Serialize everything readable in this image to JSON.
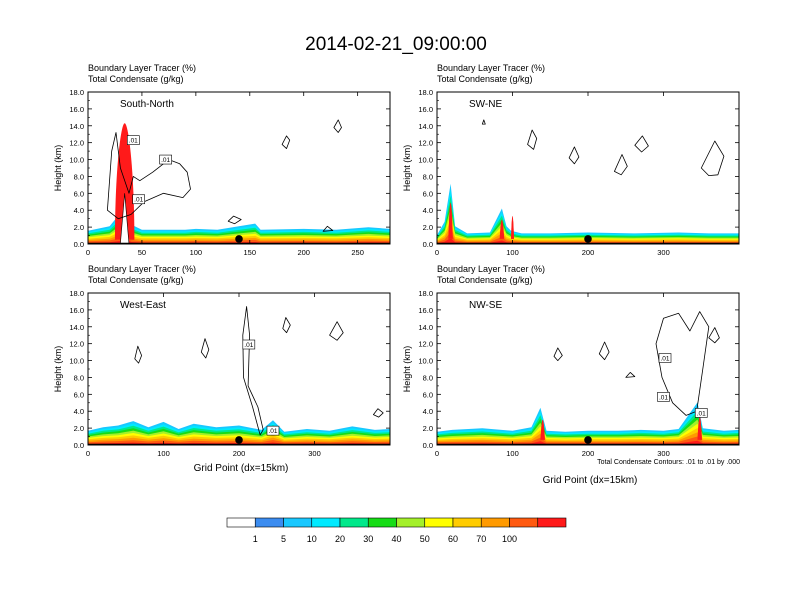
{
  "title": "2014-02-21_09:00:00",
  "chart_data": [
    {
      "type": "heatmap",
      "panel_label": "South-North",
      "line1": "Boundary Layer Tracer   (%)",
      "line2": "Total Condensate   (g/kg)",
      "ylabel": "Height (km)",
      "xlabel": "",
      "xlim": [
        0,
        280
      ],
      "ylim": [
        0,
        18
      ],
      "xticks": [
        0,
        50,
        100,
        150,
        200,
        250
      ],
      "yticks": [
        0.0,
        2.0,
        4.0,
        6.0,
        8.0,
        10.0,
        12.0,
        14.0,
        16.0,
        18.0
      ],
      "marker_x": 140,
      "contour_labels": [
        {
          "text": ".01",
          "x": 42,
          "y": 12.3
        },
        {
          "text": ".01",
          "x": 72,
          "y": 10.0
        },
        {
          "text": ".01",
          "x": 47,
          "y": 5.3
        }
      ]
    },
    {
      "type": "heatmap",
      "panel_label": "SW-NE",
      "line1": "Boundary Layer Tracer   (%)",
      "line2": "Total Condensate   (g/kg)",
      "ylabel": "Height (km)",
      "xlabel": "",
      "xlim": [
        0,
        400
      ],
      "ylim": [
        0,
        18
      ],
      "xticks": [
        0,
        100,
        200,
        300
      ],
      "yticks": [
        0.0,
        2.0,
        4.0,
        6.0,
        8.0,
        10.0,
        12.0,
        14.0,
        16.0,
        18.0
      ],
      "marker_x": 200,
      "contour_labels": []
    },
    {
      "type": "heatmap",
      "panel_label": "West-East",
      "line1": "Boundary Layer Tracer   (%)",
      "line2": "Total Condensate   (g/kg)",
      "ylabel": "Height (km)",
      "xlabel": "Grid Point (dx=15km)",
      "xlim": [
        0,
        400
      ],
      "ylim": [
        0,
        18
      ],
      "xticks": [
        0,
        100,
        200,
        300
      ],
      "yticks": [
        0.0,
        2.0,
        4.0,
        6.0,
        8.0,
        10.0,
        12.0,
        14.0,
        16.0,
        18.0
      ],
      "marker_x": 200,
      "contour_labels": [
        {
          "text": ".01",
          "x": 213,
          "y": 11.9
        },
        {
          "text": ".01",
          "x": 245,
          "y": 1.7
        }
      ]
    },
    {
      "type": "heatmap",
      "panel_label": "NW-SE",
      "line1": "Boundary Layer Tracer   (%)",
      "line2": "Total Condensate   (g/kg)",
      "ylabel": "Height (km)",
      "xlabel": "Grid Point (dx=15km)",
      "xlim": [
        0,
        400
      ],
      "ylim": [
        0,
        18
      ],
      "xticks": [
        0,
        100,
        200,
        300
      ],
      "yticks": [
        0.0,
        2.0,
        4.0,
        6.0,
        8.0,
        10.0,
        12.0,
        14.0,
        16.0,
        18.0
      ],
      "marker_x": 200,
      "contour_labels": [
        {
          "text": ".01",
          "x": 302,
          "y": 10.3
        },
        {
          "text": ".01",
          "x": 300,
          "y": 5.7
        },
        {
          "text": ".01",
          "x": 350,
          "y": 3.8
        }
      ],
      "footnote": "Total Condensate Contours: .01 to .01 by .000"
    }
  ],
  "colorbar": {
    "labels": [
      "1",
      "5",
      "10",
      "20",
      "30",
      "40",
      "50",
      "60",
      "70",
      "100"
    ],
    "colors": [
      "#ffffff",
      "#3b8cf0",
      "#19c8ff",
      "#00eaff",
      "#00e88a",
      "#16dc16",
      "#a4f02a",
      "#ffff00",
      "#ffcc00",
      "#ff9a00",
      "#ff5a10",
      "#ff1a1a"
    ]
  }
}
